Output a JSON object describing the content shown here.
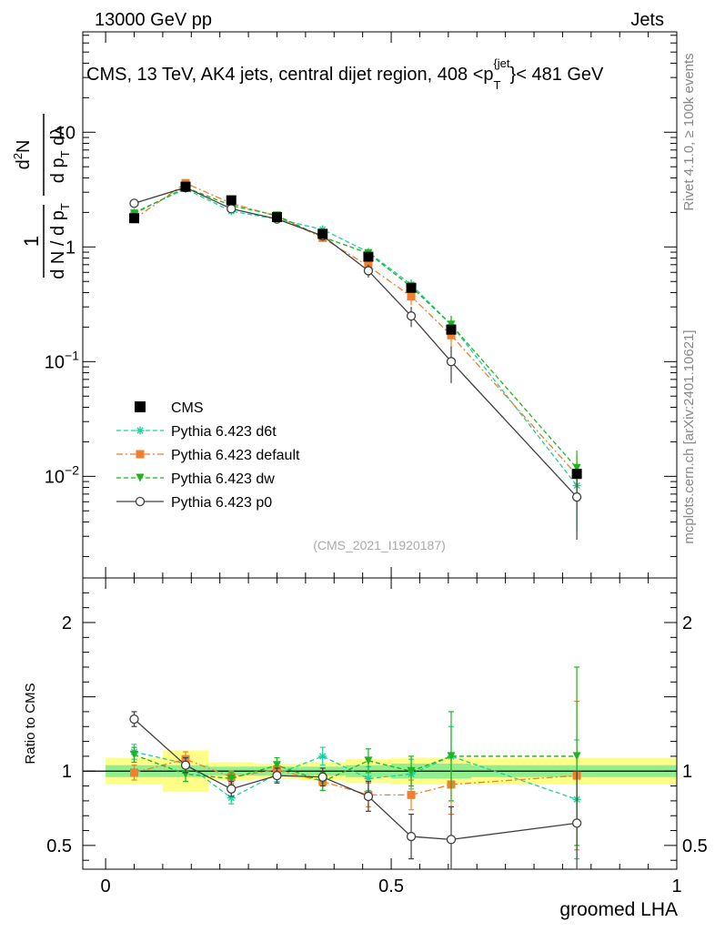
{
  "header": {
    "left_label": "13000 GeV pp",
    "right_label": "Jets"
  },
  "side_labels": {
    "rivet": "Rivet 4.1.0, ≥ 100k events",
    "mcplots": "mcplots.cern.ch [arXiv:2401.10621]"
  },
  "chart_data": [
    {
      "type": "line",
      "panel": "main",
      "title": "CMS, 13 TeV, AK4 jets, central dijet region, 408 <p_T^{jet}< 481 GeV",
      "title_parts": {
        "pre": "CMS, 13 TeV, AK4 jets, central dijet region, 408 <p",
        "sub": "T",
        "sup": "{jet",
        "post": "}< 481 GeV"
      },
      "ylabel": "1/(dN/dp_T) d²N/(dp_T dλ)",
      "yscale": "log",
      "ylim": [
        0.0013,
        75
      ],
      "xlim": [
        -0.04,
        1.0
      ],
      "y_ticks": [
        {
          "value": 0.01,
          "base": "10",
          "exp": "−2"
        },
        {
          "value": 0.1,
          "base": "10",
          "exp": "−1"
        },
        {
          "value": 1,
          "base": "1",
          "exp": ""
        },
        {
          "value": 10,
          "base": "10",
          "exp": ""
        }
      ],
      "watermark": "(CMS_2021_I1920187)",
      "x": [
        0.05,
        0.14,
        0.22,
        0.3,
        0.38,
        0.46,
        0.535,
        0.605,
        0.825
      ],
      "series": [
        {
          "name": "CMS",
          "color": "#000000",
          "style": "data",
          "values": [
            1.78,
            3.35,
            2.55,
            1.82,
            1.3,
            0.82,
            0.44,
            0.19,
            0.0105
          ]
        },
        {
          "name": "Pythia 6.423 d6t",
          "color": "#1fcfa0",
          "style": "dashed",
          "marker": "star",
          "values": [
            2.0,
            3.2,
            2.05,
            1.75,
            1.42,
            0.9,
            0.47,
            0.21,
            0.0083
          ],
          "errors": [
            0.08,
            0.1,
            0.08,
            0.08,
            0.08,
            0.07,
            0.05,
            0.04,
            0.005
          ]
        },
        {
          "name": "Pythia 6.423 default",
          "color": "#f07f2e",
          "style": "dashdot",
          "marker": "square",
          "values": [
            1.75,
            3.6,
            2.4,
            1.85,
            1.2,
            0.68,
            0.37,
            0.17,
            0.0103
          ],
          "errors": [
            0.08,
            0.1,
            0.08,
            0.08,
            0.08,
            0.07,
            0.06,
            0.04,
            0.005
          ]
        },
        {
          "name": "Pythia 6.423 dw",
          "color": "#1fb31f",
          "style": "dashed",
          "marker": "triangle",
          "values": [
            1.95,
            3.3,
            2.3,
            1.88,
            1.22,
            0.88,
            0.45,
            0.21,
            0.0118
          ],
          "errors": [
            0.08,
            0.1,
            0.08,
            0.08,
            0.08,
            0.07,
            0.05,
            0.04,
            0.005
          ]
        },
        {
          "name": "Pythia 6.423 p0",
          "color": "#404040",
          "style": "solid",
          "marker": "circle",
          "values": [
            2.4,
            3.3,
            2.15,
            1.75,
            1.25,
            0.62,
            0.25,
            0.1,
            0.0066
          ],
          "errors": [
            0.08,
            0.1,
            0.08,
            0.08,
            0.08,
            0.08,
            0.05,
            0.035,
            0.0038
          ]
        }
      ],
      "legend_position": "lower-left"
    },
    {
      "type": "line",
      "panel": "ratio",
      "ylabel": "Ratio to CMS",
      "xlabel": "groomed LHA",
      "ylim": [
        0.34,
        2.3
      ],
      "xlim": [
        -0.04,
        1.0
      ],
      "y_ticks": [
        0.5,
        1,
        2
      ],
      "y_tick_labels": [
        "0.5",
        "1",
        "2"
      ],
      "x_ticks": [
        0,
        0.5,
        1
      ],
      "x_tick_labels": [
        "0",
        "0.5",
        "1"
      ],
      "bins": [
        {
          "lo": 0.0,
          "hi": 0.1,
          "stat": 0.04,
          "total": 0.09
        },
        {
          "lo": 0.1,
          "hi": 0.18,
          "stat": 0.04,
          "total": 0.14
        },
        {
          "lo": 0.18,
          "hi": 0.26,
          "stat": 0.03,
          "total": 0.06
        },
        {
          "lo": 0.26,
          "hi": 0.34,
          "stat": 0.03,
          "total": 0.05
        },
        {
          "lo": 0.34,
          "hi": 0.42,
          "stat": 0.03,
          "total": 0.06
        },
        {
          "lo": 0.42,
          "hi": 0.5,
          "stat": 0.04,
          "total": 0.08
        },
        {
          "lo": 0.5,
          "hi": 0.57,
          "stat": 0.05,
          "total": 0.09
        },
        {
          "lo": 0.57,
          "hi": 0.64,
          "stat": 0.05,
          "total": 0.09
        },
        {
          "lo": 0.64,
          "hi": 1.0,
          "stat": 0.04,
          "total": 0.09
        }
      ],
      "series": [
        {
          "name": "Pythia 6.423 d6t",
          "color": "#1fcfa0",
          "style": "dashed",
          "marker": "star",
          "values": [
            1.13,
            1.05,
            0.82,
            0.98,
            1.1,
            0.95,
            0.98,
            1.1,
            0.81
          ],
          "errors": [
            0.05,
            0.05,
            0.04,
            0.05,
            0.06,
            0.08,
            0.1,
            0.2,
            0.4
          ]
        },
        {
          "name": "Pythia 6.423 default",
          "color": "#f07f2e",
          "style": "dashdot",
          "marker": "square",
          "values": [
            0.99,
            1.08,
            0.96,
            1.01,
            0.93,
            0.84,
            0.84,
            0.91,
            0.97
          ],
          "errors": [
            0.05,
            0.05,
            0.04,
            0.05,
            0.06,
            0.08,
            0.1,
            0.2,
            0.5
          ]
        },
        {
          "name": "Pythia 6.423 dw",
          "color": "#1fb31f",
          "style": "dashed",
          "marker": "triangle",
          "values": [
            1.11,
            0.98,
            0.95,
            1.04,
            0.93,
            1.07,
            1.0,
            1.1,
            1.1
          ],
          "errors": [
            0.05,
            0.05,
            0.04,
            0.05,
            0.06,
            0.08,
            0.1,
            0.3,
            0.6
          ]
        },
        {
          "name": "Pythia 6.423 p0",
          "color": "#404040",
          "style": "solid",
          "marker": "circle",
          "values": [
            1.35,
            1.04,
            0.88,
            0.97,
            0.96,
            0.83,
            0.56,
            0.54,
            0.65
          ],
          "errors": [
            0.05,
            0.05,
            0.05,
            0.05,
            0.06,
            0.1,
            0.15,
            0.22,
            0.35
          ]
        }
      ]
    }
  ]
}
